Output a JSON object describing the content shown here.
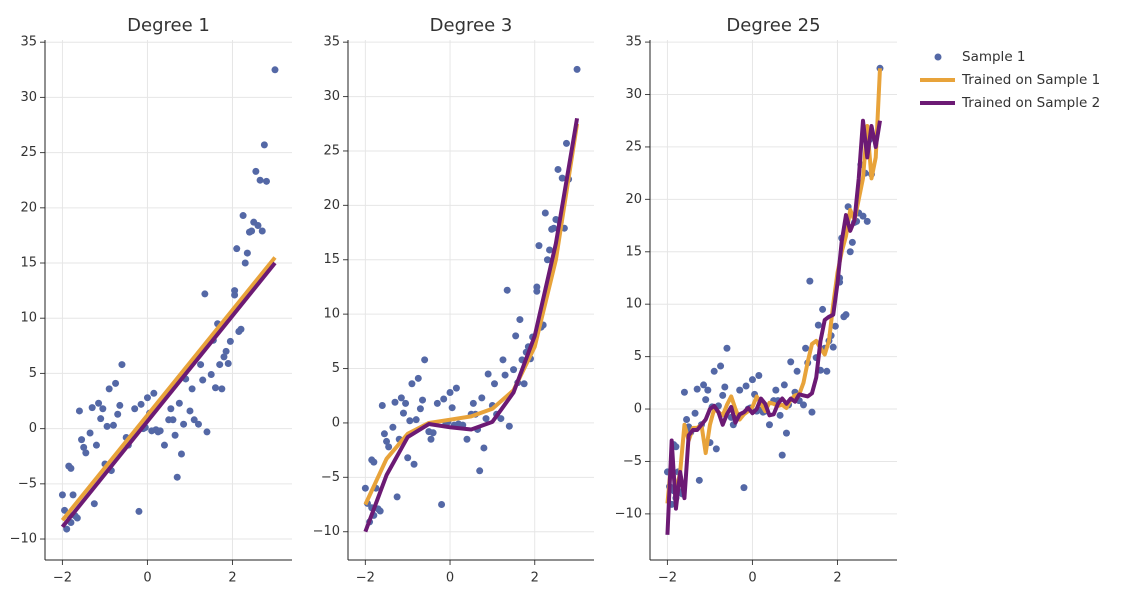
{
  "chart_data": [
    {
      "type": "scatter",
      "title": "Degree 1",
      "xlim": [
        -2.41,
        3.4
      ],
      "ylim": [
        -11.9,
        35.2
      ],
      "xticks": [
        {
          "value": -2,
          "label": "−2"
        },
        0,
        2
      ],
      "yticks": [
        {
          "value": -10,
          "label": "−10"
        },
        {
          "value": -5,
          "label": "−5"
        },
        0,
        5,
        10,
        15,
        20,
        25,
        30,
        35
      ],
      "grid": true,
      "legend": "outside-right",
      "series": [
        {
          "name": "Sample 1",
          "mode": "markers",
          "color": "#5468a6",
          "x": [
            -2.0,
            -1.95,
            -1.9,
            -1.85,
            -1.8,
            -1.85,
            -1.8,
            -1.75,
            -1.7,
            -1.65,
            -1.6,
            -1.55,
            -1.5,
            -1.45,
            -1.35,
            -1.3,
            -1.25,
            -1.2,
            -1.15,
            -1.1,
            -1.05,
            -1.0,
            -0.95,
            -0.9,
            -0.85,
            -0.8,
            -0.75,
            -0.7,
            -0.65,
            -0.6,
            -0.5,
            -0.45,
            -0.4,
            -0.3,
            -0.2,
            -0.15,
            -0.1,
            -0.05,
            0.0,
            0.05,
            0.1,
            0.15,
            0.2,
            0.25,
            0.3,
            0.4,
            0.5,
            0.55,
            0.6,
            0.65,
            0.7,
            0.75,
            0.8,
            0.85,
            0.9,
            1.0,
            1.05,
            1.1,
            1.2,
            1.25,
            1.3,
            1.35,
            1.4,
            1.5,
            1.55,
            1.6,
            1.65,
            1.7,
            1.75,
            1.8,
            1.85,
            1.9,
            1.95,
            2.05,
            2.1,
            2.15,
            2.2,
            2.25,
            2.3,
            2.35,
            2.4,
            2.45,
            2.5,
            2.55,
            2.6,
            2.65,
            2.7,
            2.75,
            2.8,
            3.0,
            2.05
          ],
          "values": [
            -6.0,
            -7.4,
            -9.1,
            -3.4,
            -3.6,
            -7.8,
            -8.5,
            -6.0,
            -7.9,
            -8.1,
            1.6,
            -1.0,
            -1.7,
            -2.2,
            -0.4,
            1.9,
            -6.8,
            -1.5,
            2.3,
            0.9,
            1.8,
            -3.2,
            0.2,
            3.6,
            -3.8,
            0.3,
            4.1,
            1.3,
            2.1,
            5.8,
            -0.8,
            -1.5,
            -0.9,
            1.8,
            -7.5,
            2.2,
            0.0,
            0.1,
            2.8,
            1.4,
            -0.2,
            3.2,
            -0.1,
            -0.3,
            -0.2,
            -1.5,
            0.8,
            1.8,
            0.8,
            -0.6,
            -4.4,
            2.3,
            -2.3,
            0.4,
            4.5,
            1.6,
            3.6,
            0.8,
            0.4,
            5.8,
            4.4,
            12.2,
            -0.3,
            4.9,
            8.0,
            3.7,
            9.5,
            5.8,
            3.6,
            6.5,
            7.0,
            5.9,
            7.9,
            12.1,
            16.3,
            8.8,
            9.0,
            19.3,
            15.0,
            15.9,
            17.8,
            17.9,
            18.7,
            23.3,
            18.4,
            22.5,
            17.9,
            25.7,
            22.4,
            32.5,
            12.5
          ]
        },
        {
          "name": "Trained on Sample 1",
          "mode": "lines",
          "color": "#e8a33a",
          "x": [
            -2,
            3
          ],
          "values": [
            -8.3,
            15.5
          ]
        },
        {
          "name": "Trained on Sample 2",
          "mode": "lines",
          "color": "#6c1a74",
          "x": [
            -2,
            3
          ],
          "values": [
            -8.9,
            15.0
          ]
        }
      ]
    },
    {
      "type": "scatter",
      "title": "Degree 3",
      "xlim": [
        -2.41,
        3.4
      ],
      "ylim": [
        -12.6,
        35.2
      ],
      "xticks": [
        {
          "value": -2,
          "label": "−2"
        },
        0,
        2
      ],
      "yticks": [
        {
          "value": -10,
          "label": "−10"
        },
        {
          "value": -5,
          "label": "−5"
        },
        0,
        5,
        10,
        15,
        20,
        25,
        30,
        35
      ],
      "grid": true,
      "series": [
        {
          "name": "Sample 1",
          "mode": "markers",
          "color": "#5468a6",
          "x": [
            -2.0,
            -1.95,
            -1.9,
            -1.85,
            -1.8,
            -1.85,
            -1.8,
            -1.75,
            -1.7,
            -1.65,
            -1.6,
            -1.55,
            -1.5,
            -1.45,
            -1.35,
            -1.3,
            -1.25,
            -1.2,
            -1.15,
            -1.1,
            -1.05,
            -1.0,
            -0.95,
            -0.9,
            -0.85,
            -0.8,
            -0.75,
            -0.7,
            -0.65,
            -0.6,
            -0.5,
            -0.45,
            -0.4,
            -0.3,
            -0.2,
            -0.15,
            -0.1,
            -0.05,
            0.0,
            0.05,
            0.1,
            0.15,
            0.2,
            0.25,
            0.3,
            0.4,
            0.5,
            0.55,
            0.6,
            0.65,
            0.7,
            0.75,
            0.8,
            0.85,
            0.9,
            1.0,
            1.05,
            1.1,
            1.2,
            1.25,
            1.3,
            1.35,
            1.4,
            1.5,
            1.55,
            1.6,
            1.65,
            1.7,
            1.75,
            1.8,
            1.85,
            1.9,
            1.95,
            2.05,
            2.1,
            2.15,
            2.2,
            2.25,
            2.3,
            2.35,
            2.4,
            2.45,
            2.5,
            2.55,
            2.6,
            2.65,
            2.7,
            2.75,
            2.8,
            3.0,
            2.05
          ],
          "values": [
            -6.0,
            -7.4,
            -9.1,
            -3.4,
            -3.6,
            -7.8,
            -8.5,
            -6.0,
            -7.9,
            -8.1,
            1.6,
            -1.0,
            -1.7,
            -2.2,
            -0.4,
            1.9,
            -6.8,
            -1.5,
            2.3,
            0.9,
            1.8,
            -3.2,
            0.2,
            3.6,
            -3.8,
            0.3,
            4.1,
            1.3,
            2.1,
            5.8,
            -0.8,
            -1.5,
            -0.9,
            1.8,
            -7.5,
            2.2,
            0.0,
            0.1,
            2.8,
            1.4,
            -0.2,
            3.2,
            -0.1,
            -0.3,
            -0.2,
            -1.5,
            0.8,
            1.8,
            0.8,
            -0.6,
            -4.4,
            2.3,
            -2.3,
            0.4,
            4.5,
            1.6,
            3.6,
            0.8,
            0.4,
            5.8,
            4.4,
            12.2,
            -0.3,
            4.9,
            8.0,
            3.7,
            9.5,
            5.8,
            3.6,
            6.5,
            7.0,
            5.9,
            7.9,
            12.1,
            16.3,
            8.8,
            9.0,
            19.3,
            15.0,
            15.9,
            17.8,
            17.9,
            18.7,
            23.3,
            18.4,
            22.5,
            17.9,
            25.7,
            22.4,
            32.5,
            12.5
          ]
        },
        {
          "name": "Trained on Sample 1",
          "mode": "lines",
          "color": "#e8a33a",
          "x": [
            -2,
            -1.5,
            -1,
            -0.5,
            0,
            0.5,
            1,
            1.5,
            2,
            2.5,
            3
          ],
          "values": [
            -7.5,
            -3.3,
            -1.0,
            0.0,
            0.3,
            0.6,
            1.3,
            3.0,
            7.0,
            15.0,
            27.5
          ]
        },
        {
          "name": "Trained on Sample 2",
          "mode": "lines",
          "color": "#6c1a74",
          "x": [
            -2,
            -1.5,
            -1,
            -0.5,
            0,
            0.5,
            1,
            1.5,
            2,
            2.5,
            3
          ],
          "values": [
            -10,
            -4.8,
            -1.3,
            -0.1,
            -0.4,
            -0.6,
            0.1,
            2.8,
            8.0,
            16.5,
            28
          ]
        }
      ]
    },
    {
      "type": "scatter",
      "title": "Degree 25",
      "xlim": [
        -2.41,
        3.4
      ],
      "ylim": [
        -14.4,
        35.2
      ],
      "xticks": [
        {
          "value": -2,
          "label": "−2"
        },
        0,
        2
      ],
      "yticks": [
        {
          "value": -10,
          "label": "−10"
        },
        {
          "value": -5,
          "label": "−5"
        },
        0,
        5,
        10,
        15,
        20,
        25,
        30,
        35
      ],
      "grid": true,
      "series": [
        {
          "name": "Sample 1",
          "mode": "markers",
          "color": "#5468a6",
          "x": [
            -2.0,
            -1.95,
            -1.9,
            -1.85,
            -1.8,
            -1.85,
            -1.8,
            -1.75,
            -1.7,
            -1.65,
            -1.6,
            -1.55,
            -1.5,
            -1.45,
            -1.35,
            -1.3,
            -1.25,
            -1.2,
            -1.15,
            -1.1,
            -1.05,
            -1.0,
            -0.95,
            -0.9,
            -0.85,
            -0.8,
            -0.75,
            -0.7,
            -0.65,
            -0.6,
            -0.5,
            -0.45,
            -0.4,
            -0.3,
            -0.2,
            -0.15,
            -0.1,
            -0.05,
            0.0,
            0.05,
            0.1,
            0.15,
            0.2,
            0.25,
            0.3,
            0.4,
            0.5,
            0.55,
            0.6,
            0.65,
            0.7,
            0.75,
            0.8,
            0.85,
            0.9,
            1.0,
            1.05,
            1.1,
            1.2,
            1.25,
            1.3,
            1.35,
            1.4,
            1.5,
            1.55,
            1.6,
            1.65,
            1.7,
            1.75,
            1.8,
            1.85,
            1.9,
            1.95,
            2.05,
            2.1,
            2.15,
            2.2,
            2.25,
            2.3,
            2.35,
            2.4,
            2.45,
            2.5,
            2.55,
            2.6,
            2.65,
            2.7,
            2.75,
            2.8,
            3.0,
            2.05
          ],
          "values": [
            -6.0,
            -7.4,
            -9.1,
            -3.4,
            -3.6,
            -7.8,
            -8.5,
            -6.0,
            -7.9,
            -8.1,
            1.6,
            -1.0,
            -1.7,
            -2.2,
            -0.4,
            1.9,
            -6.8,
            -1.5,
            2.3,
            0.9,
            1.8,
            -3.2,
            0.2,
            3.6,
            -3.8,
            0.3,
            4.1,
            1.3,
            2.1,
            5.8,
            -0.8,
            -1.5,
            -0.9,
            1.8,
            -7.5,
            2.2,
            0.0,
            0.1,
            2.8,
            1.4,
            -0.2,
            3.2,
            -0.1,
            -0.3,
            -0.2,
            -1.5,
            0.8,
            1.8,
            0.8,
            -0.6,
            -4.4,
            2.3,
            -2.3,
            0.4,
            4.5,
            1.6,
            3.6,
            0.8,
            0.4,
            5.8,
            4.4,
            12.2,
            -0.3,
            4.9,
            8.0,
            3.7,
            9.5,
            5.8,
            3.6,
            6.5,
            7.0,
            5.9,
            7.9,
            12.1,
            16.3,
            8.8,
            9.0,
            19.3,
            15.0,
            15.9,
            17.8,
            17.9,
            18.7,
            23.3,
            18.4,
            22.5,
            17.9,
            25.7,
            22.4,
            32.5,
            12.5
          ]
        },
        {
          "name": "Trained on Sample 1",
          "mode": "lines",
          "color": "#e8a33a",
          "x": [
            -2,
            -1.9,
            -1.8,
            -1.7,
            -1.6,
            -1.5,
            -1.4,
            -1.3,
            -1.2,
            -1.1,
            -1,
            -0.9,
            -0.8,
            -0.7,
            -0.6,
            -0.5,
            -0.4,
            -0.3,
            -0.2,
            -0.1,
            0,
            0.1,
            0.2,
            0.3,
            0.4,
            0.5,
            0.6,
            0.7,
            0.8,
            0.9,
            1,
            1.1,
            1.2,
            1.3,
            1.4,
            1.5,
            1.6,
            1.7,
            1.8,
            1.9,
            2,
            2.1,
            2.2,
            2.3,
            2.4,
            2.5,
            2.6,
            2.7,
            2.8,
            2.9,
            3
          ],
          "values": [
            -9,
            -4.7,
            -8,
            -6,
            -1.5,
            -3,
            -1.8,
            -1.8,
            -1.5,
            -4.2,
            -1.5,
            0,
            -0.3,
            -0.6,
            0.4,
            1.2,
            0,
            -1,
            -0.5,
            -0.2,
            0.2,
            1.2,
            0.5,
            -0.2,
            0.6,
            0.5,
            0.3,
            0.4,
            0.1,
            0.9,
            1.3,
            1.4,
            2.5,
            4.5,
            6.2,
            6.5,
            5.8,
            5.2,
            6.5,
            10,
            13,
            15,
            16.5,
            19,
            18,
            20,
            22,
            27,
            22,
            24,
            32.5
          ]
        },
        {
          "name": "Trained on Sample 2",
          "mode": "lines",
          "color": "#6c1a74",
          "x": [
            -2,
            -1.9,
            -1.8,
            -1.7,
            -1.6,
            -1.5,
            -1.4,
            -1.3,
            -1.2,
            -1.1,
            -1,
            -0.9,
            -0.8,
            -0.7,
            -0.6,
            -0.5,
            -0.4,
            -0.3,
            -0.2,
            -0.1,
            0,
            0.1,
            0.2,
            0.3,
            0.4,
            0.5,
            0.6,
            0.7,
            0.8,
            0.9,
            1,
            1.1,
            1.2,
            1.3,
            1.4,
            1.5,
            1.6,
            1.7,
            1.8,
            1.9,
            2,
            2.1,
            2.2,
            2.3,
            2.4,
            2.5,
            2.6,
            2.7,
            2.8,
            2.9,
            3
          ],
          "values": [
            -12,
            -3,
            -9.5,
            -6,
            -8.5,
            -2.5,
            -2,
            -2,
            -1.5,
            -1,
            0,
            0.3,
            -0.3,
            -1.5,
            -0.5,
            0.2,
            -1.3,
            -0.5,
            -0.3,
            0.1,
            -0.4,
            0,
            1.0,
            0.5,
            -0.6,
            -0.5,
            0.5,
            1,
            0.5,
            1,
            0.7,
            1.4,
            1.3,
            1.2,
            1.5,
            3,
            6.5,
            8.5,
            8.8,
            9,
            12,
            16,
            18.5,
            17,
            18,
            22,
            27.5,
            24,
            27,
            25,
            27.5
          ]
        }
      ]
    }
  ]
}
